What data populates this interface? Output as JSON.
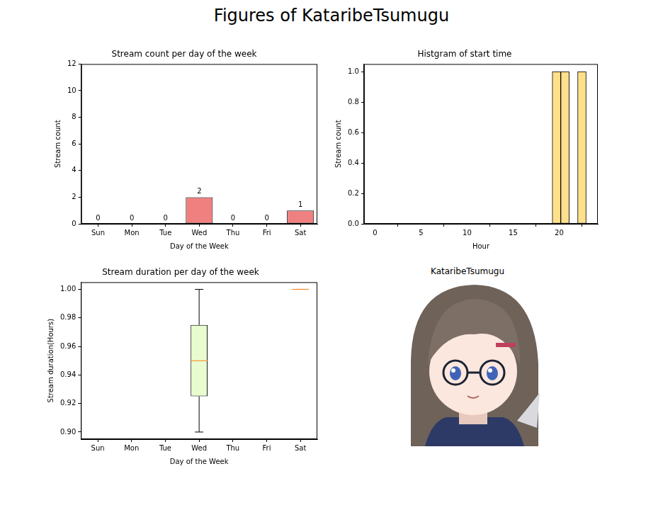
{
  "title": "Figures of KataribeTsumugu",
  "chart_data": [
    {
      "type": "bar",
      "title": "Stream count per day of the week",
      "x_label": "Day of the Week",
      "y_label": "Stream count",
      "categories": [
        "Sun",
        "Mon",
        "Tue",
        "Wed",
        "Thu",
        "Fri",
        "Sat"
      ],
      "values": [
        0,
        0,
        0,
        2,
        0,
        0,
        1
      ],
      "color": "#f08080",
      "ylim": [
        0,
        12
      ],
      "yticks": [
        0,
        2,
        4,
        6,
        8,
        10,
        12
      ],
      "data_labels": true,
      "grid": false
    },
    {
      "type": "histogram",
      "title": "Histgram of start time",
      "x_label": "Hour",
      "y_label": "Stream count",
      "bins": [
        19.25,
        20.17,
        21.09,
        22.01,
        22.93
      ],
      "values": [
        1,
        1,
        0,
        1
      ],
      "color": "#ffe08a",
      "xlim": [
        -1.2,
        24.2
      ],
      "xticks": [
        0,
        5,
        10,
        15,
        20
      ],
      "ylim": [
        0,
        1.05
      ],
      "yticks": [
        {
          "value": 0,
          "label": "0.0"
        },
        0.2,
        0.4,
        0.6,
        0.8,
        {
          "value": 1,
          "label": "1.0"
        }
      ],
      "grid": false
    },
    {
      "type": "box",
      "title": "Stream duration per day of the week",
      "x_label": "Day of the Week",
      "y_label": "Stream duration(Hours)",
      "categories": [
        "Sun",
        "Mon",
        "Tue",
        "Wed",
        "Thu",
        "Fri",
        "Sat"
      ],
      "values": [
        null,
        null,
        null,
        {
          "min": 0.9,
          "q1": 0.925,
          "median": 0.95,
          "q3": 0.975,
          "max": 1.0
        },
        null,
        null,
        {
          "min": 1.0,
          "q1": 1.0,
          "median": 1.0,
          "q3": 1.0,
          "max": 1.0
        }
      ],
      "color": "#e8fcd0",
      "ylim": [
        0.895,
        1.005
      ],
      "yticks": [
        {
          "value": 0.9,
          "label": "0.90"
        },
        0.92,
        0.94,
        0.96,
        0.98,
        {
          "value": 1.0,
          "label": "1.00"
        }
      ],
      "grid": false
    }
  ],
  "image": {
    "title": "KataribeTsumugu"
  }
}
